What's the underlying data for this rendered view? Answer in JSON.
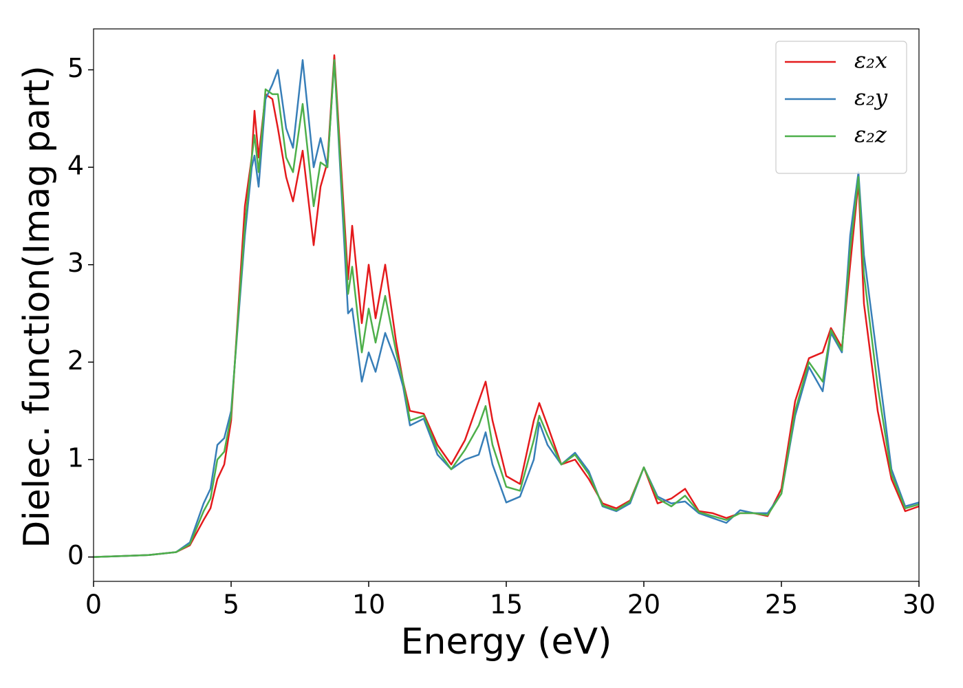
{
  "chart_data": {
    "type": "line",
    "xlabel": "Energy (eV)",
    "ylabel": "Dielec. function(Imag part)",
    "xlim": [
      0,
      30
    ],
    "ylim": [
      -0.25,
      5.42
    ],
    "xticks": [
      0,
      5,
      10,
      15,
      20,
      25,
      30
    ],
    "yticks": [
      0,
      1,
      2,
      3,
      4,
      5
    ],
    "legend": "upper right",
    "x": [
      0,
      1,
      2,
      3,
      3.5,
      3.75,
      4,
      4.25,
      4.5,
      4.75,
      5,
      5.25,
      5.5,
      5.75,
      5.85,
      6,
      6.25,
      6.5,
      6.7,
      7,
      7.25,
      7.6,
      8,
      8.25,
      8.5,
      8.75,
      9,
      9.25,
      9.4,
      9.75,
      10,
      10.25,
      10.6,
      11,
      11.25,
      11.5,
      12,
      12.5,
      13,
      13.5,
      14,
      14.25,
      14.5,
      15,
      15.5,
      16,
      16.2,
      16.5,
      17,
      17.5,
      18,
      18.5,
      19,
      19.5,
      20,
      20.5,
      21,
      21.5,
      22,
      22.5,
      23,
      23.5,
      24,
      24.5,
      25,
      25.5,
      26,
      26.5,
      26.8,
      27.2,
      27.5,
      27.8,
      28,
      28.5,
      29,
      29.5,
      30
    ],
    "series": [
      {
        "name": "ε₂x",
        "color": "#e41a1c",
        "values": [
          0,
          0.01,
          0.02,
          0.05,
          0.12,
          0.25,
          0.38,
          0.5,
          0.8,
          0.95,
          1.4,
          2.5,
          3.6,
          4.1,
          4.58,
          4.1,
          4.75,
          4.7,
          4.4,
          3.9,
          3.65,
          4.17,
          3.2,
          3.8,
          4.05,
          5.15,
          4.0,
          2.85,
          3.4,
          2.4,
          3.0,
          2.45,
          3.0,
          2.2,
          1.8,
          1.5,
          1.47,
          1.15,
          0.95,
          1.2,
          1.6,
          1.8,
          1.4,
          0.83,
          0.75,
          1.4,
          1.58,
          1.35,
          0.95,
          1.0,
          0.8,
          0.55,
          0.5,
          0.58,
          0.92,
          0.55,
          0.6,
          0.7,
          0.47,
          0.45,
          0.4,
          0.45,
          0.45,
          0.42,
          0.7,
          1.6,
          2.04,
          2.1,
          2.35,
          2.15,
          3.0,
          3.85,
          2.6,
          1.5,
          0.8,
          0.47,
          0.52
        ]
      },
      {
        "name": "ε₂y",
        "color": "#377eb8",
        "values": [
          0,
          0.01,
          0.02,
          0.05,
          0.15,
          0.35,
          0.55,
          0.7,
          1.15,
          1.22,
          1.5,
          2.4,
          3.3,
          4.0,
          4.12,
          3.8,
          4.7,
          4.85,
          5.0,
          4.4,
          4.2,
          5.1,
          4.0,
          4.3,
          4.0,
          5.1,
          3.8,
          2.5,
          2.55,
          1.8,
          2.1,
          1.9,
          2.3,
          2.0,
          1.75,
          1.35,
          1.42,
          1.05,
          0.9,
          1.0,
          1.05,
          1.28,
          0.95,
          0.56,
          0.62,
          1.0,
          1.38,
          1.15,
          0.95,
          1.07,
          0.88,
          0.52,
          0.47,
          0.55,
          0.92,
          0.62,
          0.55,
          0.57,
          0.45,
          0.4,
          0.35,
          0.48,
          0.45,
          0.45,
          0.65,
          1.45,
          1.95,
          1.7,
          2.3,
          2.1,
          3.3,
          3.95,
          3.1,
          2.0,
          0.9,
          0.52,
          0.56
        ]
      },
      {
        "name": "ε₂z",
        "color": "#4daf4a",
        "values": [
          0,
          0.01,
          0.02,
          0.05,
          0.13,
          0.3,
          0.47,
          0.6,
          1.0,
          1.08,
          1.45,
          2.45,
          3.4,
          4.1,
          4.33,
          3.95,
          4.8,
          4.75,
          4.75,
          4.1,
          3.95,
          4.65,
          3.6,
          4.05,
          4.0,
          5.1,
          3.9,
          2.7,
          2.98,
          2.1,
          2.55,
          2.2,
          2.68,
          2.1,
          1.8,
          1.4,
          1.45,
          1.1,
          0.9,
          1.1,
          1.35,
          1.55,
          1.15,
          0.72,
          0.68,
          1.2,
          1.45,
          1.25,
          0.95,
          1.05,
          0.85,
          0.53,
          0.48,
          0.57,
          0.92,
          0.6,
          0.52,
          0.63,
          0.46,
          0.42,
          0.38,
          0.45,
          0.45,
          0.43,
          0.65,
          1.5,
          2.0,
          1.8,
          2.33,
          2.12,
          3.15,
          3.9,
          2.9,
          1.75,
          0.85,
          0.5,
          0.54
        ]
      }
    ]
  }
}
